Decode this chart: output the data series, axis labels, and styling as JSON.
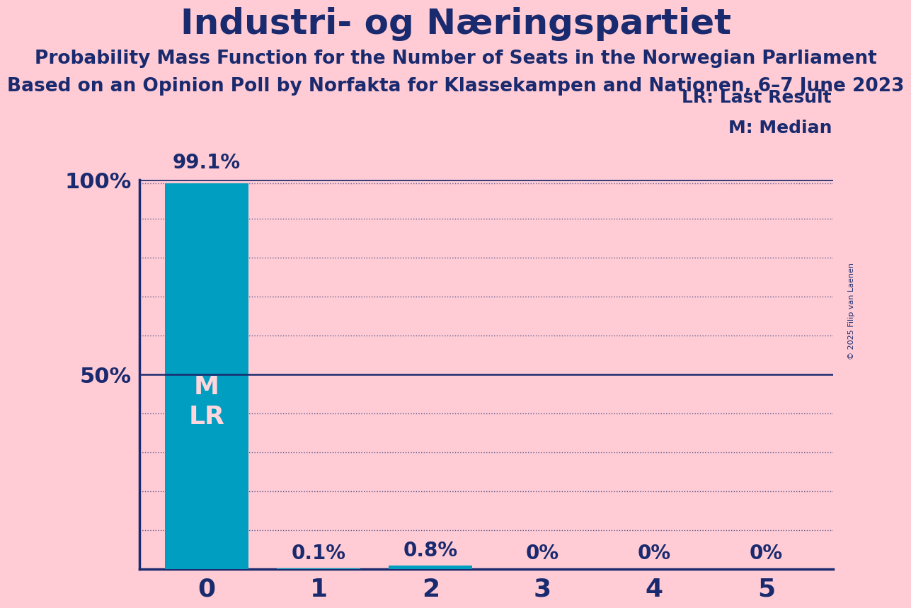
{
  "title": "Industri- og Næringspartiet",
  "subtitle1": "Probability Mass Function for the Number of Seats in the Norwegian Parliament",
  "subtitle2": "Based on an Opinion Poll by Norfakta for Klassekampen and Nationen, 6–7 June 2023",
  "copyright": "© 2025 Filip van Laenen",
  "seats": [
    0,
    1,
    2,
    3,
    4,
    5
  ],
  "probabilities": [
    99.1,
    0.1,
    0.8,
    0.0,
    0.0,
    0.0
  ],
  "bar_color": "#009EC0",
  "background_color": "#FFCCD5",
  "text_color": "#1A2A6E",
  "label_color_above": "#1A2A6E",
  "bar_inner_label_color": "#FFD6DC",
  "median": 0,
  "last_result": 0,
  "legend_lr": "LR: Last Result",
  "legend_m": "M: Median",
  "ylim_max": 100
}
